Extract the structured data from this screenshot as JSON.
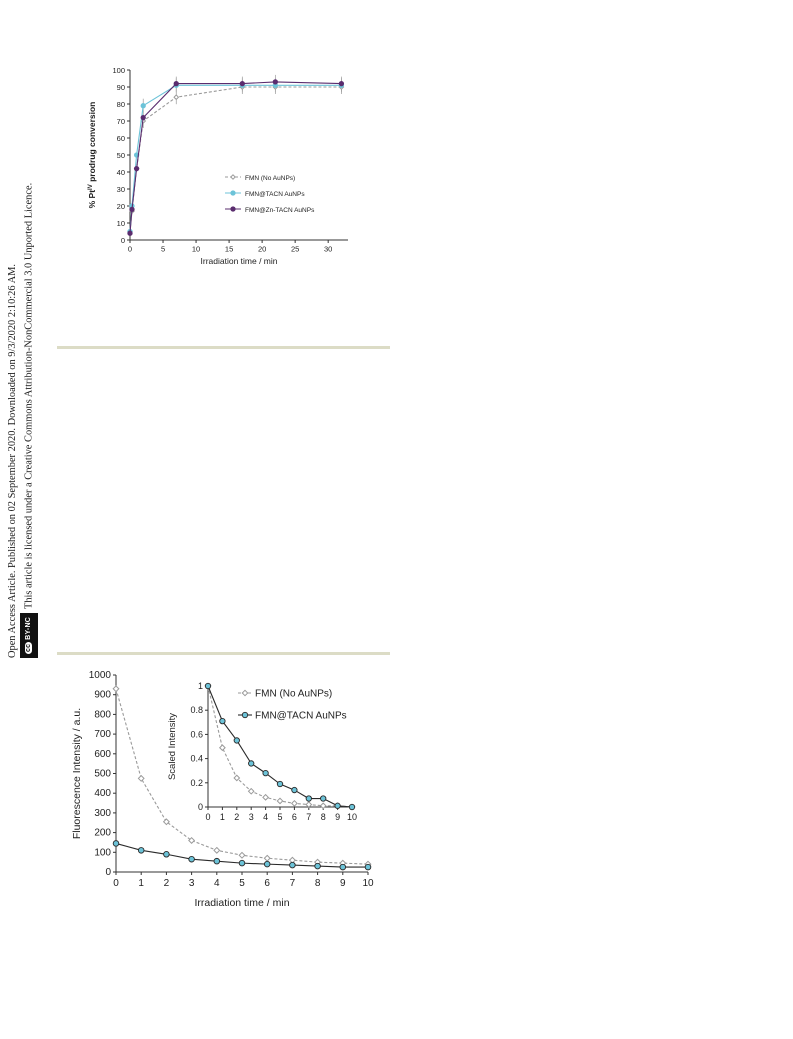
{
  "sidebar": {
    "line1": "Open Access Article. Published on 02 September 2020. Downloaded on 9/3/2020 2:10:26 AM.",
    "line2": "This article is licensed under a Creative Commons Attribution-NonCommercial 3.0 Unported Licence.",
    "badge_cc": "cc",
    "badge_text": "BY-NC"
  },
  "chart_data": [
    {
      "type": "line",
      "xlabel": "Irradiation time / min",
      "ylabel": "% Pt",
      "ylabel_sup": "IV",
      "ylabel_tail": " prodrug conversion",
      "xlim": [
        0,
        33
      ],
      "ylim": [
        0,
        100
      ],
      "xticks": [
        0,
        5,
        10,
        15,
        20,
        25,
        30
      ],
      "yticks": [
        0,
        10,
        20,
        30,
        40,
        50,
        60,
        70,
        80,
        90,
        100
      ],
      "legend_position": "center-right",
      "series": [
        {
          "name": "FMN (No AuNPs)",
          "color": "#9a9a9a",
          "marker": "diamond-open",
          "line": "dashed",
          "x": [
            0,
            0.3,
            1,
            2,
            7,
            17,
            22,
            32
          ],
          "y": [
            5,
            17,
            42,
            70,
            84,
            90,
            90,
            90
          ]
        },
        {
          "name": "FMN@TACN AuNPs",
          "color": "#6cc3d8",
          "marker": "circle-filled",
          "line": "solid",
          "x": [
            0,
            0.3,
            1,
            2,
            7,
            17,
            22,
            32
          ],
          "y": [
            5,
            20,
            50,
            79,
            91,
            91,
            91,
            91
          ]
        },
        {
          "name": "FMN@Zn-TACN AuNPs",
          "color": "#5a2c6e",
          "marker": "circle-filled",
          "line": "solid",
          "x": [
            0,
            0.3,
            1,
            2,
            7,
            17,
            22,
            32
          ],
          "y": [
            4,
            18,
            42,
            72,
            92,
            92,
            93,
            92
          ]
        }
      ]
    },
    {
      "type": "line",
      "xlabel": "Irradiation time / min",
      "ylabel": "Fluorescence Intensity / a.u.",
      "xlim": [
        0,
        10
      ],
      "ylim": [
        0,
        1000
      ],
      "xticks": [
        0,
        1,
        2,
        3,
        4,
        5,
        6,
        7,
        8,
        9,
        10
      ],
      "yticks": [
        0,
        100,
        200,
        300,
        400,
        500,
        600,
        700,
        800,
        900,
        1000
      ],
      "series": [
        {
          "name": "FMN (No AuNPs)",
          "color": "#9a9a9a",
          "marker": "diamond-open",
          "line": "dashed",
          "x": [
            0,
            1,
            2,
            3,
            4,
            5,
            6,
            7,
            8,
            9,
            10
          ],
          "y": [
            930,
            475,
            255,
            160,
            110,
            85,
            70,
            60,
            50,
            45,
            40
          ]
        },
        {
          "name": "FMN@TACN AuNPs",
          "color": "#2a2a2a",
          "fill": "#6cc3d8",
          "marker": "circle-filled",
          "line": "solid",
          "x": [
            0,
            1,
            2,
            3,
            4,
            5,
            6,
            7,
            8,
            9,
            10
          ],
          "y": [
            145,
            110,
            90,
            65,
            55,
            45,
            40,
            35,
            30,
            25,
            25
          ]
        }
      ],
      "inset": {
        "ylabel": "Scaled Intensity",
        "xlim": [
          0,
          10
        ],
        "ylim": [
          0,
          1
        ],
        "xticks": [
          0,
          1,
          2,
          3,
          4,
          5,
          6,
          7,
          8,
          9,
          10
        ],
        "yticks": [
          0,
          0.2,
          0.4,
          0.6,
          0.8,
          1
        ],
        "legend_position": "right",
        "series": [
          {
            "name": "FMN (No AuNPs)",
            "color": "#9a9a9a",
            "marker": "diamond-open",
            "line": "dashed",
            "x": [
              0,
              1,
              2,
              3,
              4,
              5,
              6,
              7,
              8,
              9,
              10
            ],
            "y": [
              1.0,
              0.49,
              0.24,
              0.13,
              0.08,
              0.05,
              0.03,
              0.02,
              0.01,
              0.01,
              0.0
            ]
          },
          {
            "name": "FMN@TACN AuNPs",
            "color": "#2a2a2a",
            "fill": "#6cc3d8",
            "marker": "circle-filled",
            "line": "solid",
            "x": [
              0,
              1,
              2,
              3,
              4,
              5,
              6,
              7,
              8,
              9,
              10
            ],
            "y": [
              1.0,
              0.71,
              0.55,
              0.36,
              0.28,
              0.19,
              0.14,
              0.07,
              0.07,
              0.01,
              0.0
            ]
          }
        ]
      }
    }
  ]
}
